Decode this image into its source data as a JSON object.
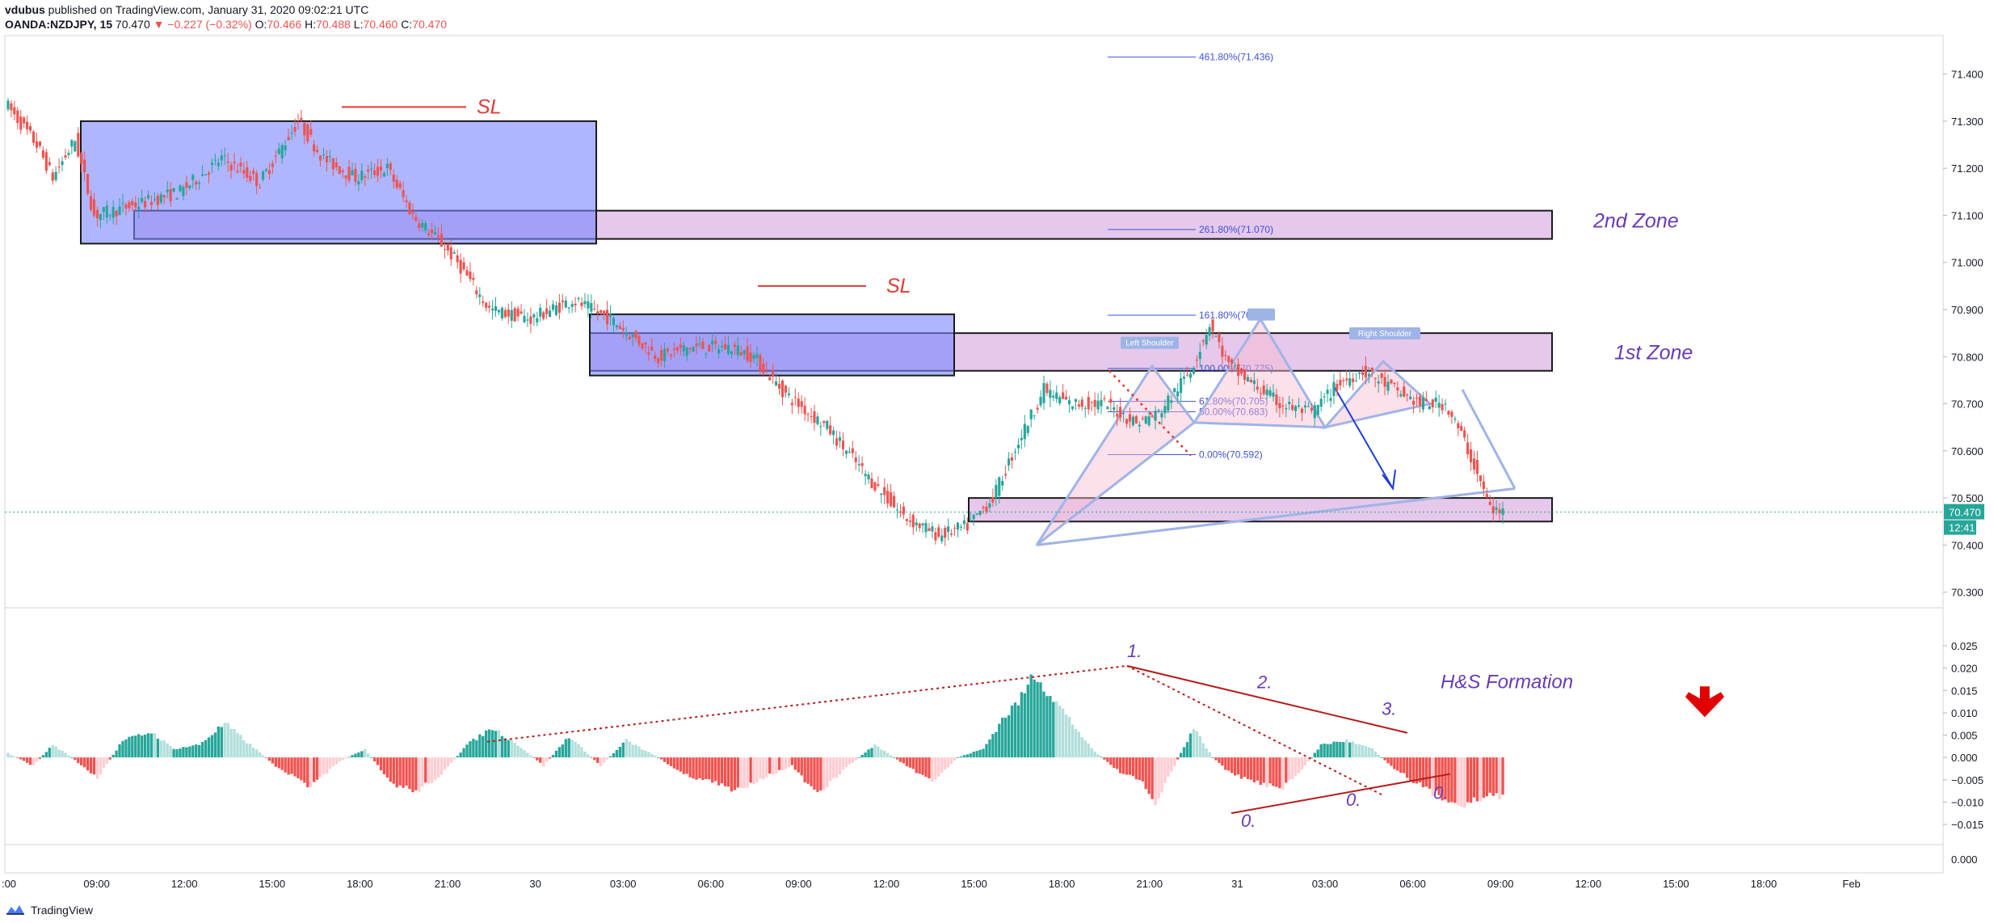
{
  "header": {
    "author": "vdubus",
    "published": "published on TradingView.com, January 31, 2020 09:02:21 UTC",
    "symbol": "OANDA:NZDJPY, 15",
    "last": "70.470",
    "change": "−0.227 (−0.32%)",
    "open_label": "O:",
    "open": "70.466",
    "high_label": "H:",
    "high": "70.488",
    "low_label": "L:",
    "low": "70.460",
    "close_label": "C:",
    "close": "70.470"
  },
  "footer": {
    "brand": "TradingView"
  },
  "colors": {
    "up": "#26a69a",
    "down": "#ef5350",
    "up_light": "#b2dfdb",
    "down_light": "#ffcdd2",
    "zone_fill": "#e1bee7",
    "box_fill": "#7986ff",
    "sl": "#e53935",
    "fib": "#3f51d8",
    "annotation": "#673ab7",
    "trend": "#b71c1c",
    "price_badge": "#26a69a"
  },
  "chart_data": [
    {
      "type": "candlestick",
      "symbol": "OANDA:NZDJPY",
      "timeframe": "15",
      "ylim": [
        70.26,
        71.48
      ],
      "y_ticks": [
        "71.400",
        "71.300",
        "71.200",
        "71.100",
        "71.000",
        "70.900",
        "70.800",
        "70.700",
        "70.600",
        "70.500",
        "70.400",
        "70.300"
      ],
      "last_price_label": "70.470",
      "countdown_label": "12:41",
      "x_ticks": [
        ":00",
        "09:00",
        "12:00",
        "15:00",
        "18:00",
        "21:00",
        "30",
        "03:00",
        "06:00",
        "09:00",
        "12:00",
        "15:00",
        "18:00",
        "21:00",
        "31",
        "03:00",
        "06:00",
        "09:00",
        "12:00",
        "15:00",
        "18:00",
        "Feb"
      ],
      "path": [
        [
          0,
          71.34
        ],
        [
          10,
          71.25
        ],
        [
          15,
          71.18
        ],
        [
          22,
          71.26
        ],
        [
          28,
          71.1
        ],
        [
          40,
          71.12
        ],
        [
          55,
          71.15
        ],
        [
          68,
          71.22
        ],
        [
          80,
          71.17
        ],
        [
          92,
          71.3
        ],
        [
          100,
          71.22
        ],
        [
          110,
          71.18
        ],
        [
          120,
          71.2
        ],
        [
          128,
          71.1
        ],
        [
          137,
          71.04
        ],
        [
          142,
          71.0
        ],
        [
          152,
          70.9
        ],
        [
          165,
          70.88
        ],
        [
          178,
          70.92
        ],
        [
          190,
          70.88
        ],
        [
          205,
          70.8
        ],
        [
          215,
          70.82
        ],
        [
          228,
          70.82
        ],
        [
          235,
          70.8
        ],
        [
          245,
          70.72
        ],
        [
          258,
          70.65
        ],
        [
          270,
          70.55
        ],
        [
          282,
          70.46
        ],
        [
          293,
          70.42
        ],
        [
          302,
          70.44
        ],
        [
          310,
          70.5
        ],
        [
          318,
          70.62
        ],
        [
          326,
          70.73
        ],
        [
          334,
          70.7
        ],
        [
          345,
          70.7
        ],
        [
          355,
          70.66
        ],
        [
          362,
          70.68
        ],
        [
          372,
          70.77
        ],
        [
          378,
          70.87
        ],
        [
          384,
          70.78
        ],
        [
          392,
          70.74
        ],
        [
          400,
          70.7
        ],
        [
          410,
          70.68
        ],
        [
          418,
          70.74
        ],
        [
          426,
          70.77
        ],
        [
          436,
          70.73
        ],
        [
          444,
          70.7
        ],
        [
          452,
          70.7
        ],
        [
          458,
          70.62
        ],
        [
          462,
          70.55
        ],
        [
          466,
          70.48
        ],
        [
          468,
          70.47
        ]
      ],
      "zones": [
        {
          "label": "2nd Zone",
          "top": 71.11,
          "bottom": 71.05
        },
        {
          "label": "1st Zone",
          "top": 70.85,
          "bottom": 70.77
        },
        {
          "label": "",
          "top": 70.5,
          "bottom": 70.45
        }
      ],
      "consolidation_boxes": [
        {
          "top": 71.3,
          "bottom": 71.04
        },
        {
          "top": 70.89,
          "bottom": 70.76
        }
      ],
      "stop_losses": [
        {
          "label": "SL",
          "price": 71.33
        },
        {
          "label": "SL",
          "price": 70.95
        }
      ],
      "fibonacci_levels": [
        {
          "label": "461.80%(71.436)",
          "price": 71.436
        },
        {
          "label": "261.80%(71.070)",
          "price": 71.07
        },
        {
          "label": "161.80%(70.888)",
          "price": 70.888
        },
        {
          "label": "100.00%(70.775)",
          "price": 70.775
        },
        {
          "label": "61.80%(70.705)",
          "price": 70.705
        },
        {
          "label": "50.00%(70.683)",
          "price": 70.683
        },
        {
          "label": "0.00%(70.592)",
          "price": 70.592
        }
      ],
      "pattern_labels": [
        "Left Shoulder",
        "Head",
        "Right Shoulder"
      ]
    },
    {
      "type": "bar",
      "panel": "oscillator",
      "ylim": [
        -0.017,
        0.027
      ],
      "y_ticks": [
        "0.025",
        "0.020",
        "0.015",
        "0.010",
        "0.005",
        "0.000",
        "−0.005",
        "−0.010",
        "−0.015"
      ],
      "extra_tick": "0.000",
      "envelope": [
        [
          0,
          0.001
        ],
        [
          8,
          -0.002
        ],
        [
          14,
          0.003
        ],
        [
          20,
          0.0
        ],
        [
          28,
          -0.005
        ],
        [
          36,
          0.004
        ],
        [
          45,
          0.006
        ],
        [
          52,
          0.002
        ],
        [
          60,
          0.003
        ],
        [
          68,
          0.008
        ],
        [
          76,
          0.003
        ],
        [
          84,
          -0.002
        ],
        [
          95,
          -0.007
        ],
        [
          104,
          -0.001
        ],
        [
          112,
          0.002
        ],
        [
          120,
          -0.006
        ],
        [
          128,
          -0.008
        ],
        [
          136,
          -0.004
        ],
        [
          144,
          0.003
        ],
        [
          152,
          0.007
        ],
        [
          160,
          0.003
        ],
        [
          168,
          -0.002
        ],
        [
          176,
          0.005
        ],
        [
          186,
          -0.002
        ],
        [
          194,
          0.004
        ],
        [
          204,
          0.0
        ],
        [
          212,
          -0.004
        ],
        [
          222,
          -0.006
        ],
        [
          228,
          -0.008
        ],
        [
          236,
          -0.005
        ],
        [
          246,
          -0.002
        ],
        [
          254,
          -0.009
        ],
        [
          262,
          -0.003
        ],
        [
          272,
          0.003
        ],
        [
          280,
          -0.001
        ],
        [
          290,
          -0.006
        ],
        [
          298,
          0.0
        ],
        [
          306,
          0.002
        ],
        [
          312,
          0.009
        ],
        [
          318,
          0.014
        ],
        [
          322,
          0.02
        ],
        [
          328,
          0.014
        ],
        [
          334,
          0.008
        ],
        [
          340,
          0.002
        ],
        [
          348,
          -0.003
        ],
        [
          356,
          -0.006
        ],
        [
          360,
          -0.011
        ],
        [
          366,
          -0.002
        ],
        [
          372,
          0.007
        ],
        [
          378,
          0.0
        ],
        [
          384,
          -0.004
        ],
        [
          392,
          -0.006
        ],
        [
          400,
          -0.007
        ],
        [
          406,
          -0.003
        ],
        [
          412,
          0.003
        ],
        [
          420,
          0.004
        ],
        [
          428,
          0.002
        ],
        [
          434,
          -0.002
        ],
        [
          440,
          -0.005
        ],
        [
          446,
          -0.008
        ],
        [
          452,
          -0.01
        ],
        [
          458,
          -0.011
        ],
        [
          465,
          -0.009
        ]
      ],
      "annotations": [
        "1.",
        "2.",
        "3.",
        "0.",
        "0.",
        "0.",
        "H&S Formation"
      ]
    }
  ]
}
